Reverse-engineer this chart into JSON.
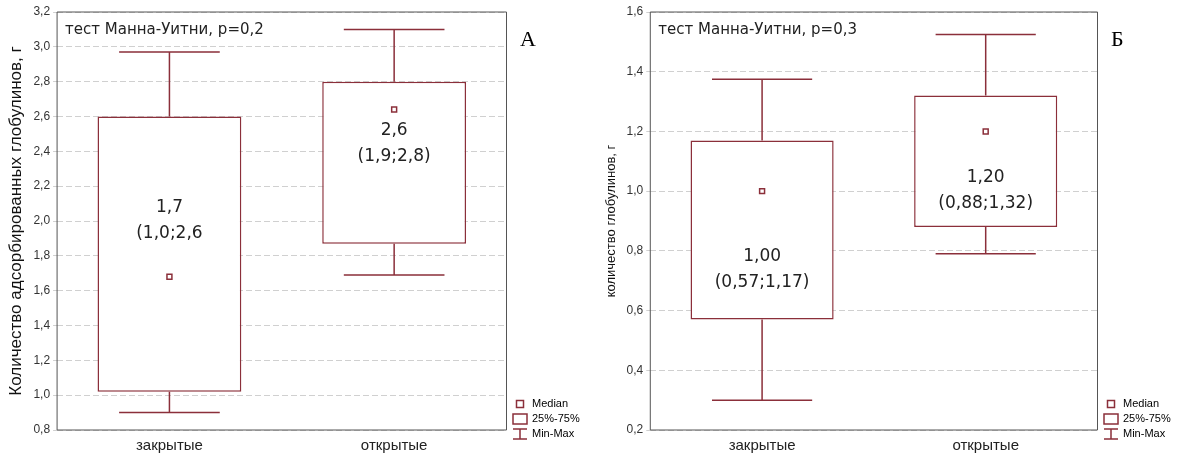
{
  "chart_data": [
    {
      "type": "box",
      "ylabel": "Количество адсорбированных глобулинов, г",
      "categories": [
        "закрытые",
        "открытые"
      ],
      "series": [
        {
          "color": "#8b2f3a",
          "boxes": [
            {
              "low": 0.9,
              "q1": 1.02,
              "median": 1.68,
              "q3": 2.6,
              "high": 2.97
            },
            {
              "low": 1.69,
              "q1": 1.87,
              "median": 2.64,
              "q3": 2.8,
              "high": 3.1
            }
          ]
        }
      ],
      "ylim": [
        0.8,
        3.2
      ],
      "yticks": [
        {
          "value": 0.8,
          "label": "0,8"
        },
        {
          "value": 1.0,
          "label": "1,0"
        },
        {
          "value": 1.2,
          "label": "1,2"
        },
        {
          "value": 1.4,
          "label": "1,4"
        },
        {
          "value": 1.6,
          "label": "1,6"
        },
        {
          "value": 1.8,
          "label": "1,8"
        },
        {
          "value": 2.0,
          "label": "2,0"
        },
        {
          "value": 2.2,
          "label": "2,2"
        },
        {
          "value": 2.4,
          "label": "2,4"
        },
        {
          "value": 2.6,
          "label": "2,6"
        },
        {
          "value": 2.8,
          "label": "2,8"
        },
        {
          "value": 3.0,
          "label": "3,0"
        },
        {
          "value": 3.2,
          "label": "3,2"
        }
      ],
      "grid": "y",
      "marker": "square",
      "annotations": [
        "тест Манна-Уитни, p=0,2",
        "А",
        "Median",
        "25%-75%",
        "Min-Max",
        "1,7",
        "(1,0;2,6",
        "2,6",
        "(1,9;2,8)"
      ]
    },
    {
      "type": "box",
      "ylabel": "количество глобулинов, г",
      "categories": [
        "закрытые",
        "открытые"
      ],
      "series": [
        {
          "color": "#8b2f3a",
          "boxes": [
            {
              "low": 0.3,
              "q1": 0.57,
              "median": 1.0,
              "q3": 1.17,
              "high": 1.375
            },
            {
              "low": 0.79,
              "q1": 0.88,
              "median": 1.2,
              "q3": 1.32,
              "high": 1.525
            }
          ]
        }
      ],
      "ylim": [
        0.2,
        1.6
      ],
      "yticks": [
        {
          "value": 0.2,
          "label": "0,2"
        },
        {
          "value": 0.4,
          "label": "0,4"
        },
        {
          "value": 0.6,
          "label": "0,6"
        },
        {
          "value": 0.8,
          "label": "0,8"
        },
        {
          "value": 1.0,
          "label": "1,0"
        },
        {
          "value": 1.2,
          "label": "1,2"
        },
        {
          "value": 1.4,
          "label": "1,4"
        },
        {
          "value": 1.6,
          "label": "1,6"
        }
      ],
      "grid": "y",
      "marker": "square",
      "annotations": [
        "тест Манна-Уитни, p=0,3",
        "Б",
        "Median",
        "25%-75%",
        "Min-Max",
        "1,00",
        "(0,57;1,17)",
        "1,20",
        "(0,88;1,32)"
      ]
    }
  ]
}
